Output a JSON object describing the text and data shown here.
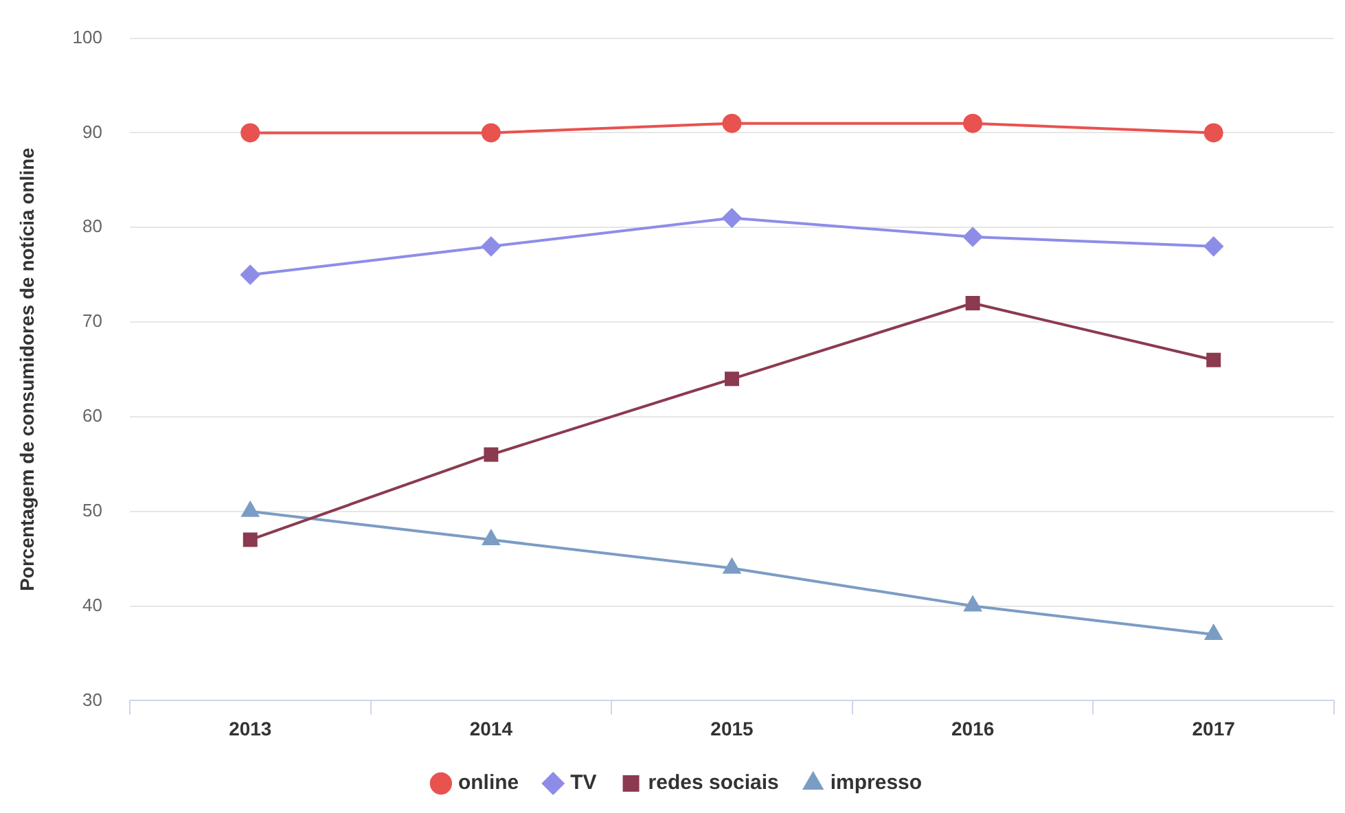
{
  "chart_data": {
    "type": "line",
    "ylabel": "Porcentagem de consumidores de notícia online",
    "categories": [
      "2013",
      "2014",
      "2015",
      "2016",
      "2017"
    ],
    "series": [
      {
        "name": "online",
        "color": "#e8524f",
        "marker": "circle",
        "values": [
          90,
          90,
          91,
          91,
          90
        ]
      },
      {
        "name": "TV",
        "color": "#8d8de8",
        "marker": "diamond",
        "values": [
          75,
          78,
          81,
          79,
          78
        ]
      },
      {
        "name": "redes sociais",
        "color": "#8b3a4f",
        "marker": "square",
        "values": [
          47,
          56,
          64,
          72,
          66
        ]
      },
      {
        "name": "impresso",
        "color": "#7b9cc4",
        "marker": "triangle",
        "values": [
          50,
          47,
          44,
          40,
          37
        ]
      }
    ],
    "ylim": [
      30,
      100
    ],
    "yticks": [
      30,
      40,
      50,
      60,
      70,
      80,
      90,
      100
    ],
    "grid": "y",
    "legend": "bottom",
    "line_style": "solid"
  }
}
